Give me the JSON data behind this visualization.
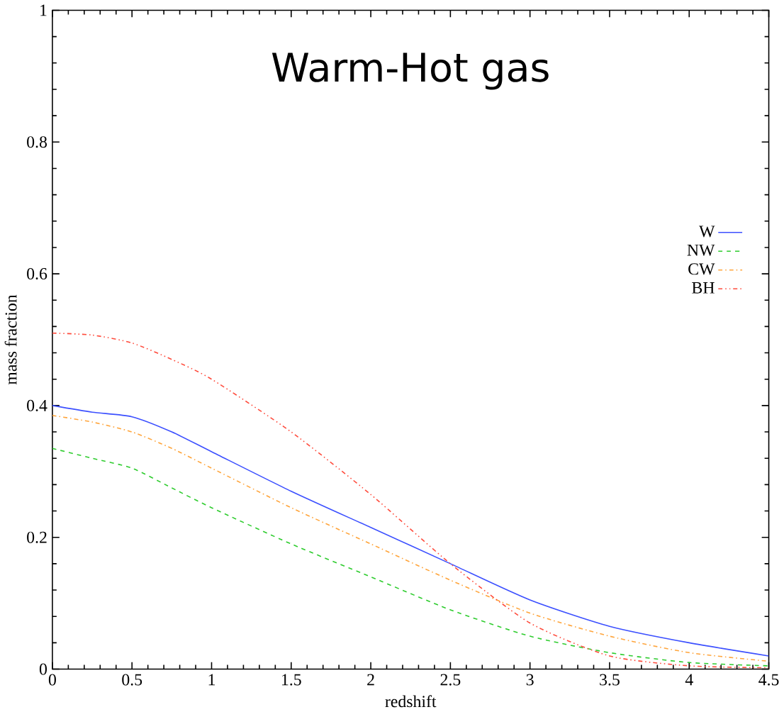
{
  "chart_data": {
    "type": "line",
    "title": "Warm-Hot gas",
    "xlabel": "redshift",
    "ylabel": "mass fraction",
    "xlim": [
      0,
      4.5
    ],
    "ylim": [
      0,
      1
    ],
    "xticks": [
      0,
      0.5,
      1,
      1.5,
      2,
      2.5,
      3,
      3.5,
      4,
      4.5
    ],
    "yticks": [
      0,
      0.2,
      0.4,
      0.6,
      0.8,
      1
    ],
    "legend": "right",
    "grid": false,
    "x": [
      0,
      0.25,
      0.5,
      0.75,
      1,
      1.5,
      2,
      2.5,
      3,
      3.5,
      4,
      4.5
    ],
    "series": [
      {
        "name": "W",
        "color": "#3c50ff",
        "line_style": "solid",
        "values": [
          0.4,
          0.39,
          0.383,
          0.36,
          0.33,
          0.27,
          0.215,
          0.16,
          0.105,
          0.065,
          0.04,
          0.02
        ]
      },
      {
        "name": "NW",
        "color": "#2ecc2e",
        "line_style": "dashed",
        "values": [
          0.335,
          0.32,
          0.305,
          0.275,
          0.245,
          0.19,
          0.14,
          0.09,
          0.05,
          0.025,
          0.01,
          0.005
        ]
      },
      {
        "name": "CW",
        "color": "#ffa53c",
        "line_style": "dashdotted",
        "values": [
          0.385,
          0.375,
          0.36,
          0.335,
          0.305,
          0.245,
          0.19,
          0.135,
          0.085,
          0.05,
          0.025,
          0.012
        ]
      },
      {
        "name": "BH",
        "color": "#ff4b3c",
        "line_style": "dashdotdotted",
        "values": [
          0.51,
          0.507,
          0.495,
          0.47,
          0.44,
          0.36,
          0.265,
          0.16,
          0.07,
          0.02,
          0.005,
          0.002
        ]
      }
    ]
  }
}
